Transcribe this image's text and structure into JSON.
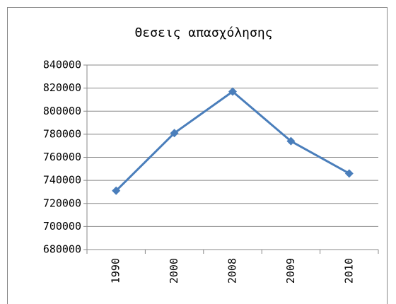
{
  "chart_data": {
    "type": "line",
    "title": "Θεσεις απασχόλησης",
    "categories": [
      "1990",
      "2000",
      "2008",
      "2009",
      "2010"
    ],
    "values": [
      731000,
      781000,
      817000,
      774000,
      746000
    ],
    "color": "#4a7ebb",
    "ylim": [
      680000,
      840000
    ],
    "yticks": [
      680000,
      700000,
      720000,
      740000,
      760000,
      780000,
      800000,
      820000,
      840000
    ],
    "grid": true
  }
}
